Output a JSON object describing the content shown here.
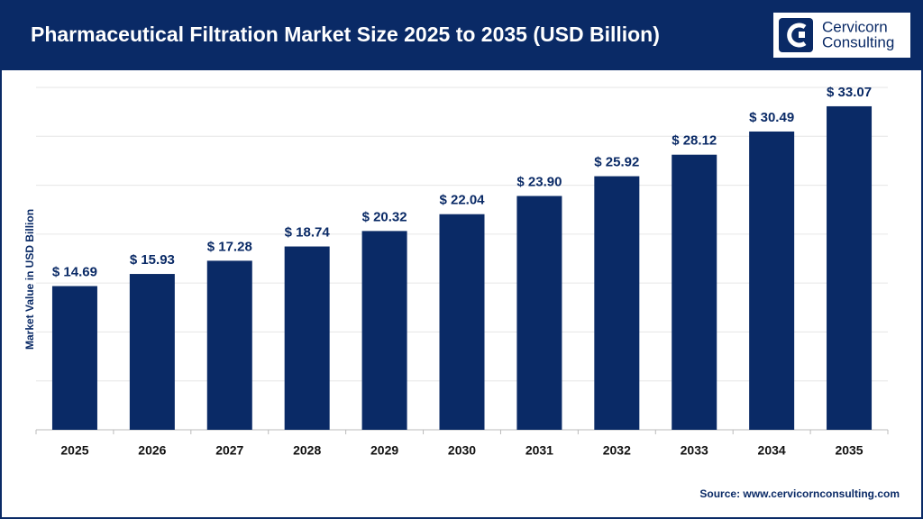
{
  "chart_data": {
    "type": "bar",
    "title": "Pharmaceutical Filtration Market Size 2025 to 2035 (USD Billion)",
    "y_label": "Market Value in USD Billion",
    "source": "Source: www.cervicornconsulting.com",
    "categories": [
      "2025",
      "2026",
      "2027",
      "2028",
      "2029",
      "2030",
      "2031",
      "2032",
      "2033",
      "2034",
      "2035"
    ],
    "values": [
      14.69,
      15.93,
      17.28,
      18.74,
      20.32,
      22.04,
      23.9,
      25.92,
      28.12,
      30.49,
      33.07
    ],
    "value_labels": [
      "$ 14.69",
      "$ 15.93",
      "$ 17.28",
      "$ 18.74",
      "$ 20.32",
      "$ 22.04",
      "$ 23.90",
      "$ 25.92",
      "$ 28.12",
      "$ 30.49",
      "$ 33.07"
    ],
    "color": "#0a2a66",
    "ylim": [
      0,
      35
    ],
    "yticks": [
      0,
      5,
      10,
      15,
      20,
      25,
      30,
      35
    ],
    "grid": true
  },
  "logo": {
    "line1": "Cervicorn",
    "line2": "Consulting"
  }
}
